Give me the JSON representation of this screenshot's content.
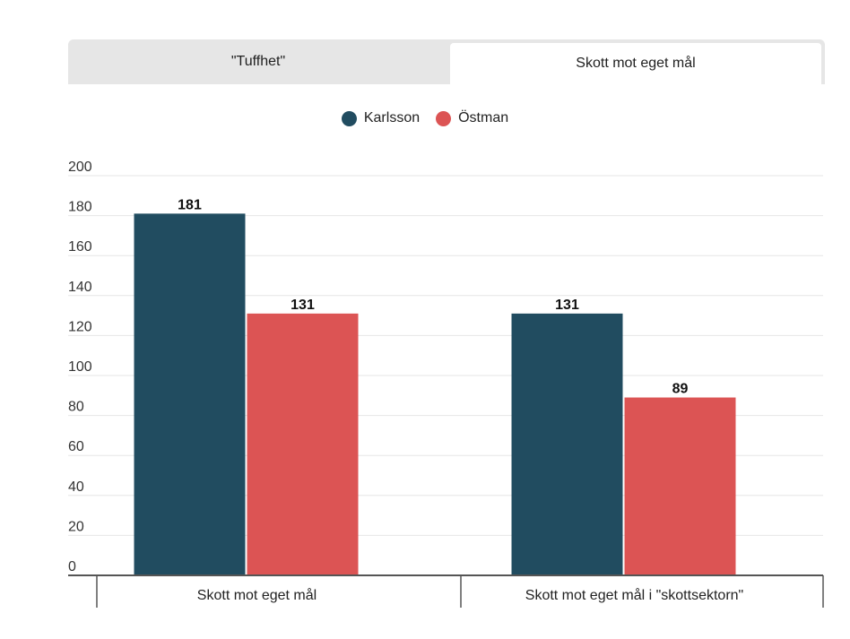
{
  "tabs": [
    {
      "label": "\"Tuffhet\"",
      "active": false
    },
    {
      "label": "Skott mot eget mål",
      "active": true
    }
  ],
  "colors": {
    "karlsson": "#214c60",
    "ostman": "#dc5454"
  },
  "chart_data": {
    "type": "bar",
    "title": "",
    "xlabel": "",
    "ylabel": "",
    "categories": [
      "Skott mot eget mål",
      "Skott mot eget mål i \"skottsektorn\""
    ],
    "series": [
      {
        "name": "Karlsson",
        "values": [
          181,
          131
        ]
      },
      {
        "name": "Östman",
        "values": [
          131,
          89
        ]
      }
    ],
    "ylim": [
      0,
      200
    ],
    "yticks": [
      0,
      20,
      40,
      60,
      80,
      100,
      120,
      140,
      160,
      180,
      200
    ],
    "grid": true,
    "legend": "top-center",
    "data_labels": true
  }
}
